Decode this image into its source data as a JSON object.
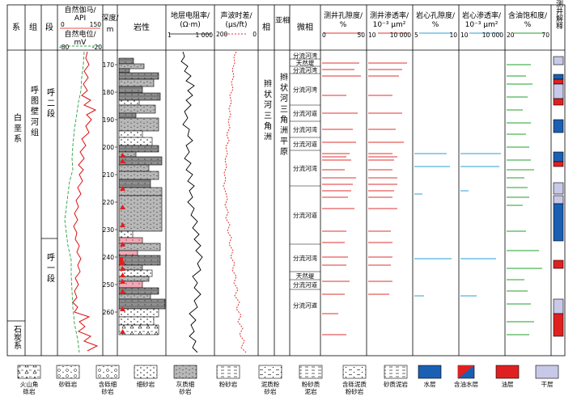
{
  "columns": {
    "series": "系",
    "group": "组",
    "member": "段",
    "gr_title": "自然伽马/",
    "gr_unit": "API",
    "gr_min": "0",
    "gr_max": "150",
    "sp_title": "自然电位/",
    "sp_unit": "mV",
    "sp_min": "-80",
    "sp_max": "-20",
    "depth_title": "深度/",
    "depth_unit": "m",
    "lithology": "岩性",
    "res_title": "地层电阻率/",
    "res_unit": "(Ω·m)",
    "res_min": "1",
    "res_max": "1 000",
    "ac_title": "声波时差/",
    "ac_unit": "(μs/ft)",
    "ac_min": "200",
    "ac_max": "0",
    "facies": "相",
    "subfacies": "亚相",
    "microfacies": "微相",
    "por_log_title": "测井孔隙度/",
    "por_log_unit": "%",
    "por_log_min": "0",
    "por_log_max": "50",
    "perm_log_title": "测井渗透率/",
    "perm_log_unit": "10⁻³ μm²",
    "perm_log_min": "10",
    "perm_log_max": "10 000",
    "por_core_title": "岩心孔隙度/",
    "por_core_unit": "%",
    "por_core_min": "5",
    "por_core_max": "10",
    "perm_core_title": "岩心渗透率/",
    "perm_core_unit": "10⁻³ μm²",
    "perm_core_min": "10",
    "perm_core_max": "10 000",
    "sat_title": "含油饱和度/",
    "sat_unit": "%",
    "sat_min": "20",
    "sat_max": "70",
    "interp": "测井解释"
  },
  "strat": {
    "series_upper": "白 垩 系",
    "series_lower": "石炭系",
    "group_name": "呼 图 壁 河 组",
    "member_upper": "呼 二 段",
    "member_lower": "呼 一 段",
    "facies_name": "辫 状 河 三 角 洲",
    "subfacies_name": "辫 状 河 三 角 洲 平 原"
  },
  "depth_ticks": [
    "170",
    "180",
    "190",
    "200",
    "210",
    "220",
    "230",
    "240",
    "250",
    "260"
  ],
  "microfacies": [
    "分流河湾",
    "天然堤",
    "分流河湾",
    "分流河湾",
    "分流河道",
    "分流河湾",
    "分流河道",
    "分流河湾",
    "分流河道",
    "分流河湾",
    "天然堤",
    "分流河道",
    "分流河道"
  ],
  "legend": [
    "火山角砾岩",
    "砂砾岩",
    "含砾细砂岩",
    "细砂岩",
    "灰质细砂岩",
    "粉砂岩",
    "泥质粉砂岩",
    "粉砂质泥岩",
    "含砾泥质粉砂岩",
    "砂质泥岩",
    "水层",
    "含油水层",
    "油层",
    "干层"
  ],
  "colors": {
    "gr": "#dd1111",
    "sp": "#2ea043",
    "ac": "#e03030",
    "por_log": "#e03030",
    "perm_log": "#e03030",
    "core": "#2a9fd6",
    "sat": "#22a02a",
    "water": "#1a5fb4",
    "oil": "#e02020",
    "dry": "#c8c8e8"
  }
}
